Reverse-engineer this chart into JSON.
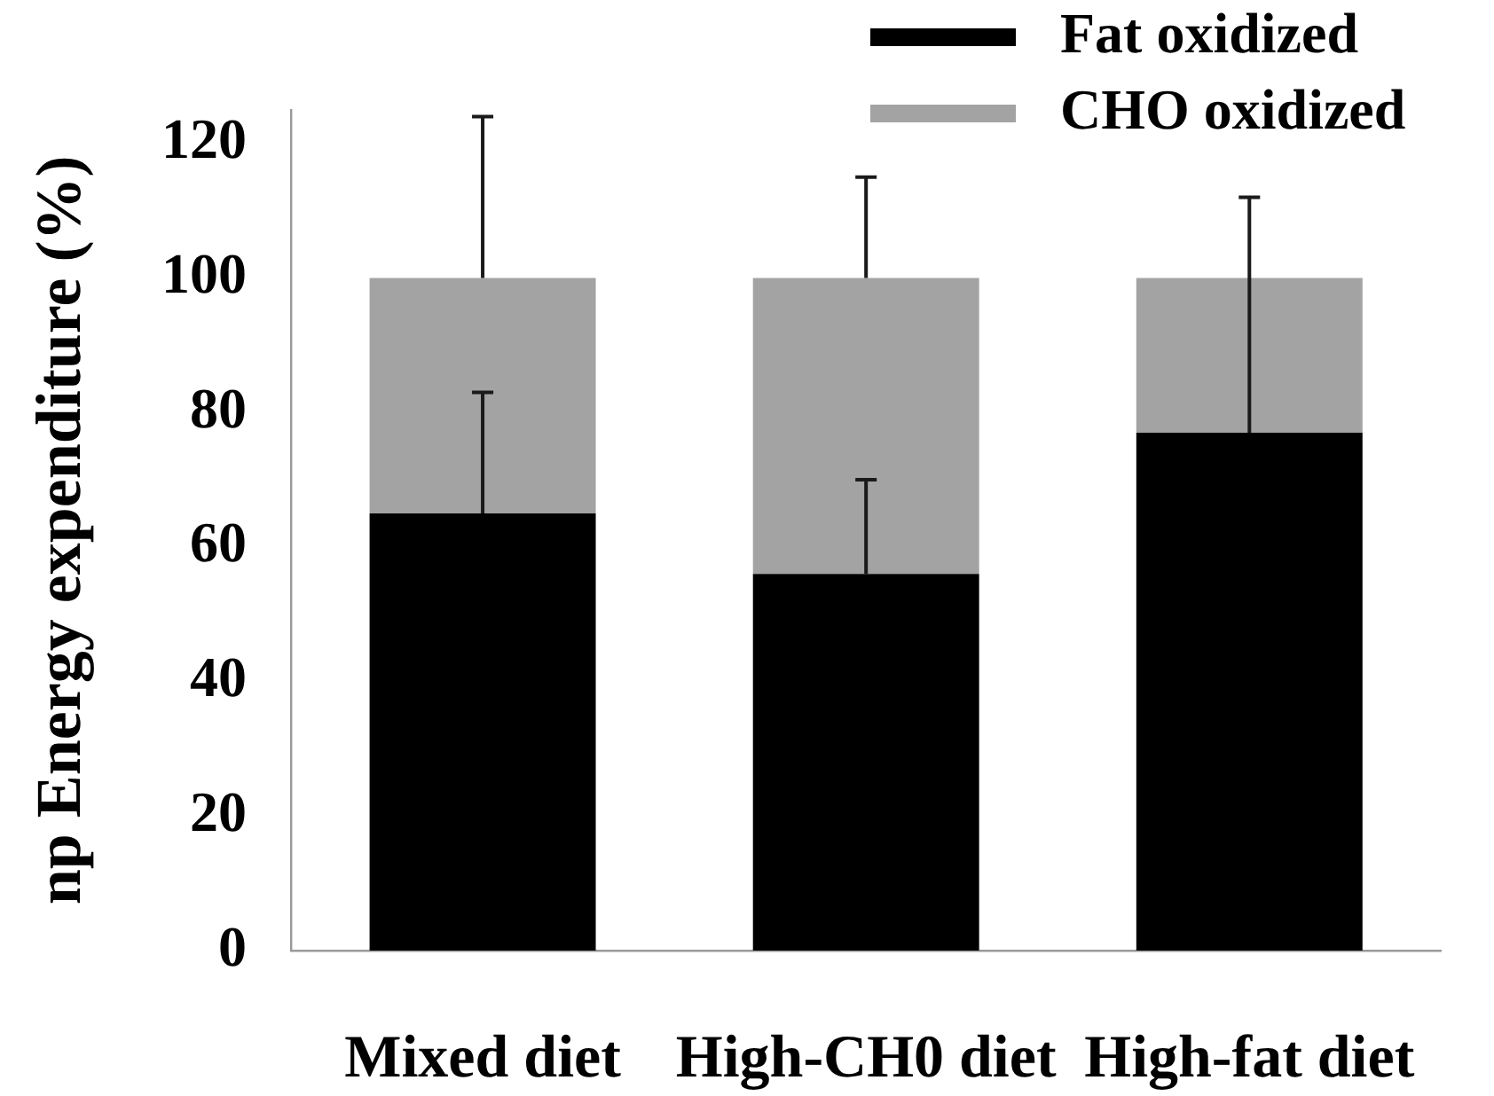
{
  "chart_data": {
    "type": "bar",
    "stacked": true,
    "ylabel": "np Energy expenditure (%)",
    "categories": [
      "Mixed diet",
      "High-CH0 diet",
      "High-fat diet"
    ],
    "series": [
      {
        "name": "Fat oxidized",
        "color": "#000000",
        "values": [
          65,
          56,
          77
        ],
        "errors": [
          [
            65,
            83
          ],
          [
            56,
            70
          ],
          [
            77,
            112
          ]
        ]
      },
      {
        "name": "CHO oxidized",
        "color": "#a3a3a3",
        "values": [
          35,
          44,
          23
        ],
        "errors": [
          [
            100,
            124
          ],
          [
            100,
            115
          ],
          null
        ]
      }
    ],
    "ylim": [
      0,
      125
    ],
    "yticks": [
      0,
      20,
      40,
      60,
      80,
      100,
      120
    ],
    "legend": "top right"
  }
}
